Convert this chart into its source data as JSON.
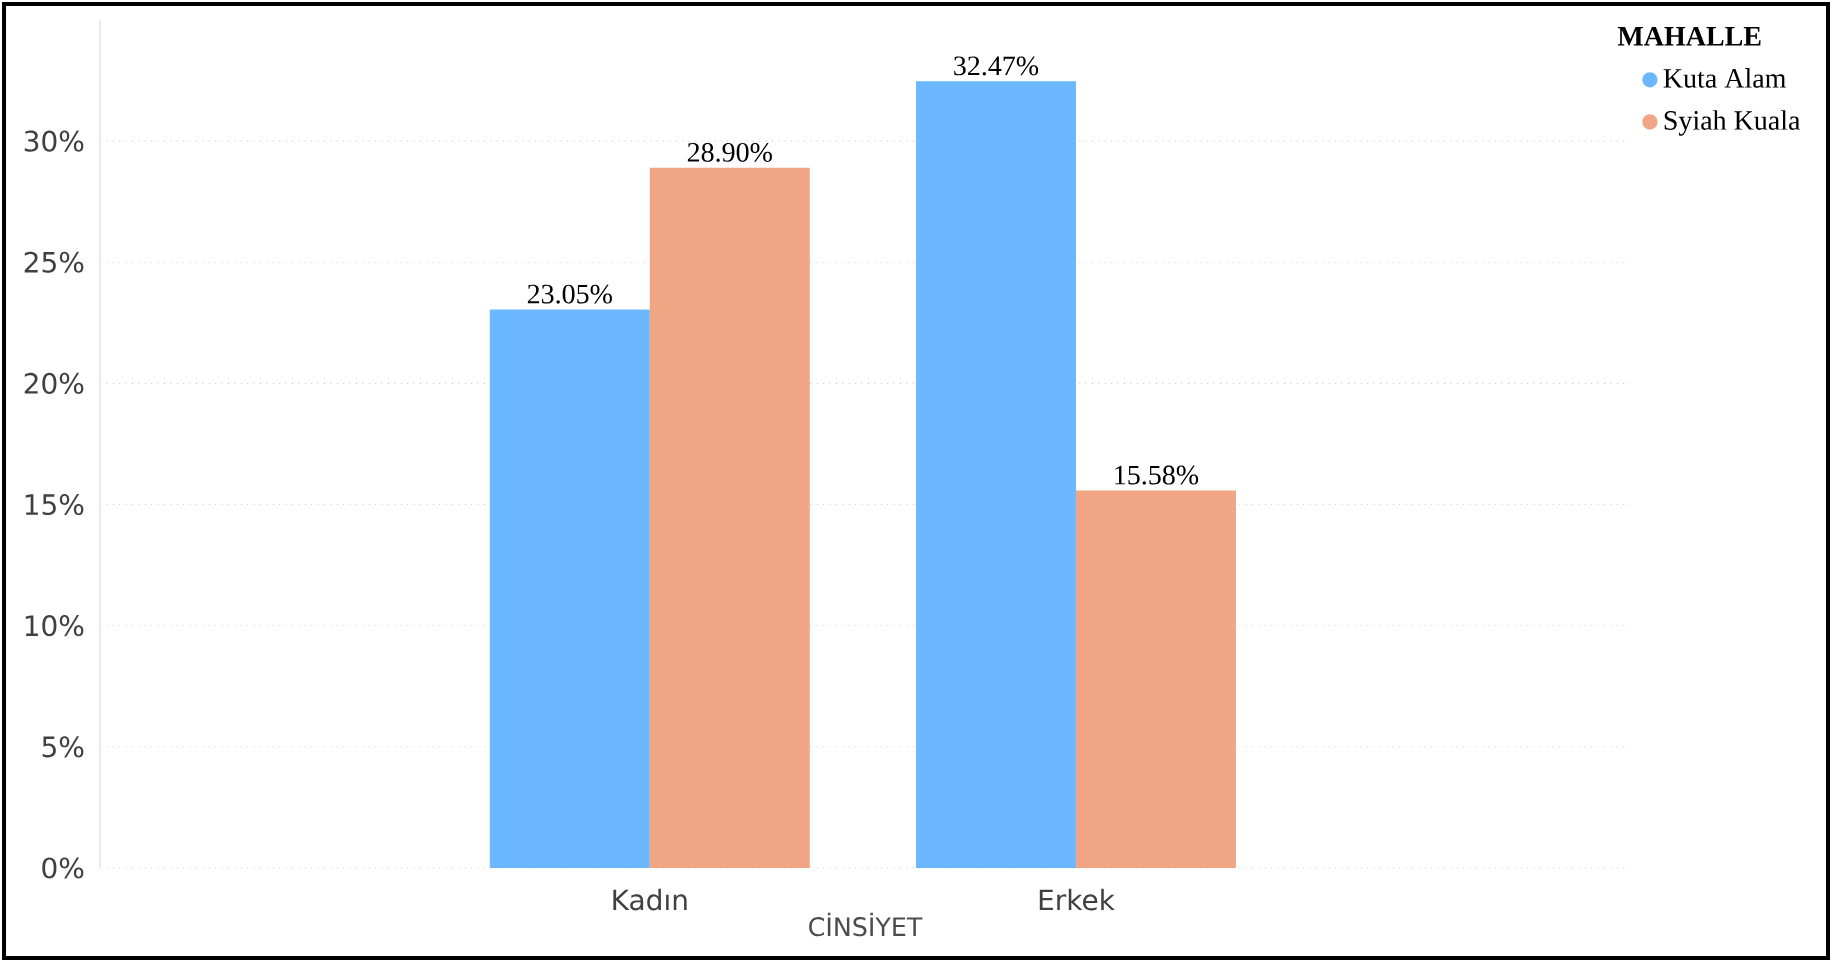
{
  "chart_data": {
    "type": "bar",
    "categories": [
      "Kadın",
      "Erkek"
    ],
    "series": [
      {
        "name": "Kuta Alam",
        "color": "#6cb8ff",
        "values": [
          23.05,
          32.47
        ],
        "value_labels": [
          "23.05%",
          "32.47%"
        ]
      },
      {
        "name": "Syiah Kuala",
        "color": "#f0a585",
        "values": [
          28.9,
          15.58
        ],
        "value_labels": [
          "28.90%",
          "15.58%"
        ]
      }
    ],
    "xlabel": "CİNSİYET",
    "legend_title": "MAHALLE",
    "legend": "top right",
    "grid": "y",
    "ylim": [
      0,
      35
    ],
    "yticks": [
      {
        "value": 0,
        "label": "0%"
      },
      {
        "value": 5,
        "label": "5%"
      },
      {
        "value": 10,
        "label": "10%"
      },
      {
        "value": 15,
        "label": "15%"
      },
      {
        "value": 20,
        "label": "20%"
      },
      {
        "value": 25,
        "label": "25%"
      },
      {
        "value": 30,
        "label": "30%"
      }
    ]
  }
}
